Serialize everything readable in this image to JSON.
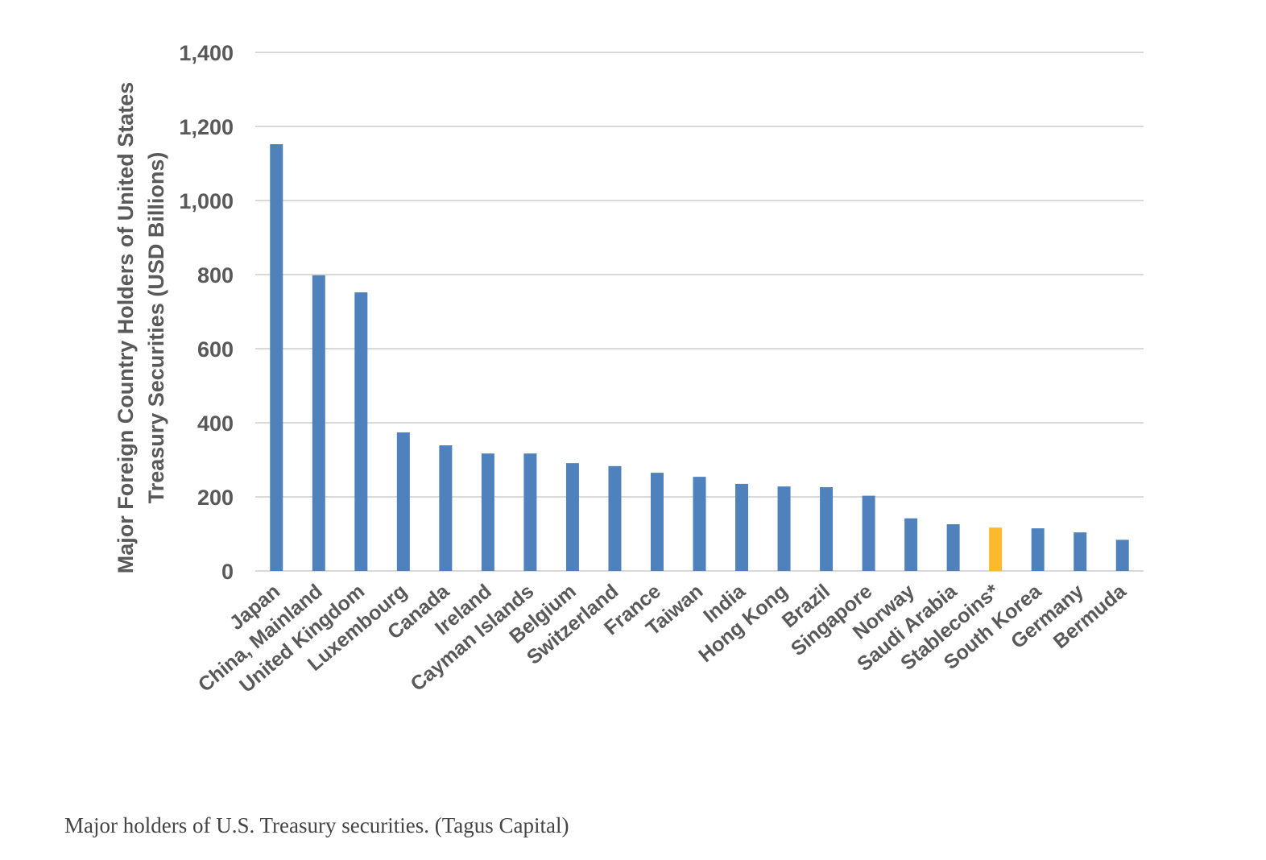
{
  "chart_data": {
    "type": "bar",
    "ylabel_lines": [
      "Major Foreign Country Holders of United States",
      "Treasury Securities  (USD Billions)"
    ],
    "ylim": [
      0,
      1400
    ],
    "yticks": [
      0,
      200,
      400,
      600,
      800,
      1000,
      1200,
      1400
    ],
    "ytick_labels": [
      "0",
      "200",
      "400",
      "600",
      "800",
      "1,000",
      "1,200",
      "1,400"
    ],
    "grid": true,
    "categories": [
      "Japan",
      "China, Mainland",
      "United Kingdom",
      "Luxembourg",
      "Canada",
      "Ireland",
      "Cayman Islands",
      "Belgium",
      "Switzerland",
      "France",
      "Taiwan",
      "India",
      "Hong Kong",
      "Brazil",
      "Singapore",
      "Norway",
      "Saudi Arabia",
      "Stablecoins*",
      "South Korea",
      "Germany",
      "Bermuda"
    ],
    "values": [
      1152,
      798,
      752,
      374,
      339,
      317,
      317,
      291,
      283,
      265,
      254,
      235,
      228,
      226,
      203,
      142,
      126,
      117,
      115,
      104,
      84
    ],
    "colors": {
      "default": "#4F81BD",
      "highlight": "#FBBA2E",
      "grid": "#D9D9D9",
      "text": "#595959"
    },
    "highlight_category": "Stablecoins*"
  },
  "caption": "Major holders of U.S. Treasury securities. (Tagus Capital)"
}
